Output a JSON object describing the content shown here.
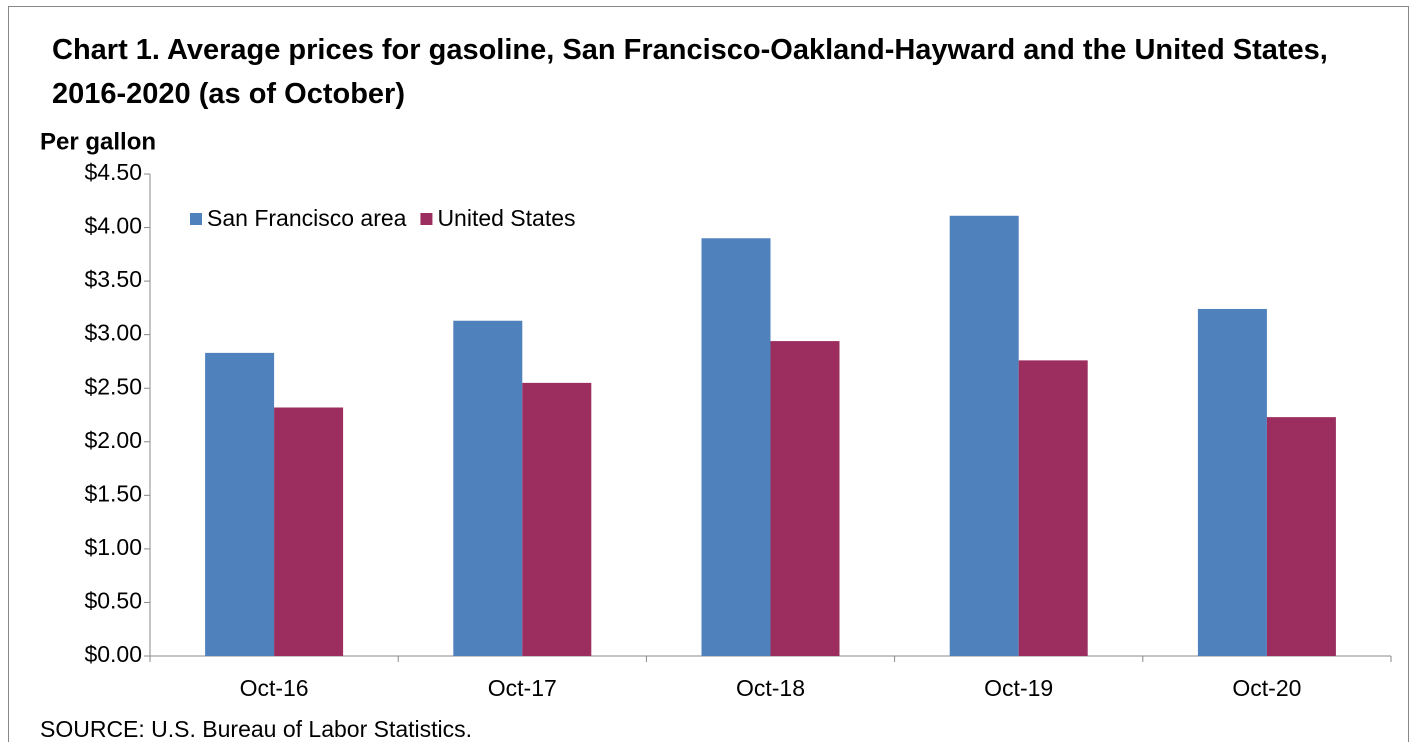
{
  "chart_data": {
    "type": "bar",
    "title": "Chart 1. Average prices for gasoline, San Francisco-Oakland-Hayward and the United States, 2016-2020  (as of October)",
    "y_label": "Per gallon",
    "source": "SOURCE: U.S. Bureau of Labor Statistics.",
    "categories": [
      "Oct-16",
      "Oct-17",
      "Oct-18",
      "Oct-19",
      "Oct-20"
    ],
    "series": [
      {
        "name": "San Francisco area",
        "color": "#4f81bd",
        "values": [
          2.83,
          3.13,
          3.9,
          4.11,
          3.24
        ]
      },
      {
        "name": "United States",
        "color": "#9b2d5f",
        "values": [
          2.32,
          2.55,
          2.94,
          2.76,
          2.23
        ]
      }
    ],
    "ylim": [
      0,
      4.5
    ],
    "yticks": [
      {
        "value": 0,
        "label": "$0.00"
      },
      {
        "value": 0.5,
        "label": "$0.50"
      },
      {
        "value": 1,
        "label": "$1.00"
      },
      {
        "value": 1.5,
        "label": "$1.50"
      },
      {
        "value": 2,
        "label": "$2.00"
      },
      {
        "value": 2.5,
        "label": "$2.50"
      },
      {
        "value": 3,
        "label": "$3.00"
      },
      {
        "value": 3.5,
        "label": "$3.50"
      },
      {
        "value": 4,
        "label": "$4.00"
      },
      {
        "value": 4.5,
        "label": "$4.50"
      }
    ],
    "grid": false,
    "legend": "top-left"
  }
}
